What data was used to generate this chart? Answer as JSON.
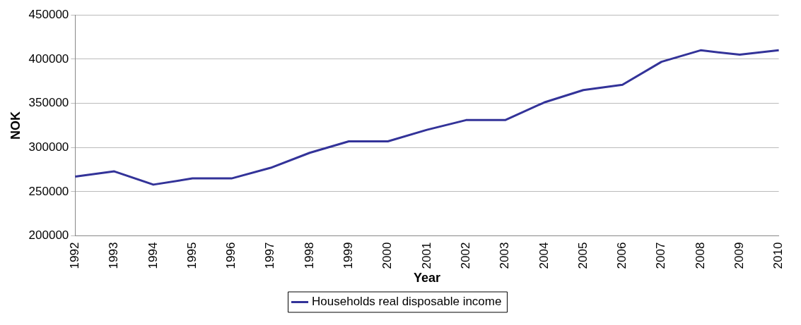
{
  "chart_data": {
    "type": "line",
    "xlabel": "Year",
    "ylabel": "NOK",
    "categories": [
      "1992",
      "1993",
      "1994",
      "1995",
      "1996",
      "1997",
      "1998",
      "1999",
      "2000",
      "2001",
      "2002",
      "2003",
      "2004",
      "2005",
      "2006",
      "2007",
      "2008",
      "2009",
      "2010"
    ],
    "series": [
      {
        "name": "Households real disposable income",
        "color": "#333399",
        "values": [
          267000,
          273000,
          258000,
          265000,
          265000,
          277000,
          294000,
          307000,
          307000,
          320000,
          331000,
          331000,
          351000,
          365000,
          371000,
          397000,
          410000,
          405000,
          410000
        ]
      }
    ],
    "ylim": [
      200000,
      450000
    ],
    "yticks": [
      200000,
      250000,
      300000,
      350000,
      400000,
      450000
    ],
    "grid": "y",
    "legend": "bottom",
    "marker": "none",
    "line_style": "solid"
  }
}
